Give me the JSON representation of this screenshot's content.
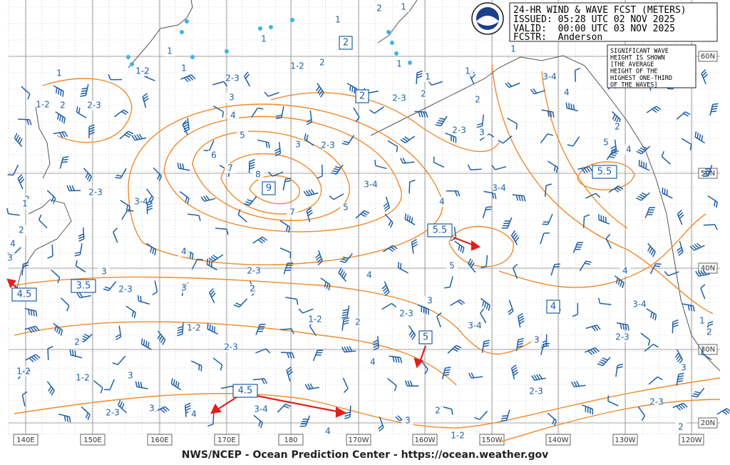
{
  "header": {
    "title": "24-HR WIND & WAVE FCST (METERS)",
    "issued": "ISSUED: 05:28 UTC 02 NOV 2025",
    "valid": "VALID:  00:00 UTC 03 NOV 2025",
    "forecaster": "FCSTR:  Anderson"
  },
  "note": [
    "SIGNIFICANT WAVE",
    "HEIGHT IS SHOWN",
    "[THE AVERAGE",
    "HEIGHT OF THE",
    "HIGHEST ONE-THIRD",
    "OF THE WAVES]"
  ],
  "lat_labels": [
    "60N",
    "50N",
    "40N",
    "30N",
    "20N"
  ],
  "lon_labels": [
    "140E",
    "150E",
    "160E",
    "170E",
    "180",
    "170W",
    "160W",
    "150W",
    "140W",
    "130W",
    "120W"
  ],
  "boxed_labels": [
    "2",
    "2",
    "9",
    "5.5",
    "5.5",
    "3.5",
    "4.5",
    "4",
    "5",
    "4.5"
  ],
  "contour_labels": [
    "1",
    "1-2",
    "1",
    "1-2",
    "2",
    "2-3",
    "2-3",
    "3",
    "4",
    "5",
    "6",
    "7",
    "8",
    "7",
    "5",
    "3",
    "2-3",
    "3-4",
    "4",
    "5",
    "4",
    "3-4",
    "2-3",
    "4",
    "3",
    "2-3",
    "2",
    "3",
    "2-3",
    "1-2",
    "2",
    "2-3",
    "3",
    "3-4",
    "1-2",
    "2-3",
    "2",
    "1-2",
    "1-2",
    "3",
    "4",
    "2-3",
    "3",
    "4",
    "3-4",
    "4",
    "3",
    "2",
    "1-2",
    "3",
    "2-3",
    "2-3",
    "3-4",
    "4",
    "2-3",
    "2",
    "3",
    "1",
    "2",
    "3-4",
    "2-3",
    "3",
    "3-4",
    "4",
    "2",
    "5",
    "4",
    "2",
    "1",
    "1",
    "1",
    "2",
    "2-3",
    "1-2",
    "2",
    "1",
    "1",
    "2",
    "1",
    "1",
    "1",
    "2",
    "1",
    "4",
    "2",
    "3"
  ],
  "footer": "NWS/NCEP - Ocean Prediction Center - https://ocean.weather.gov"
}
